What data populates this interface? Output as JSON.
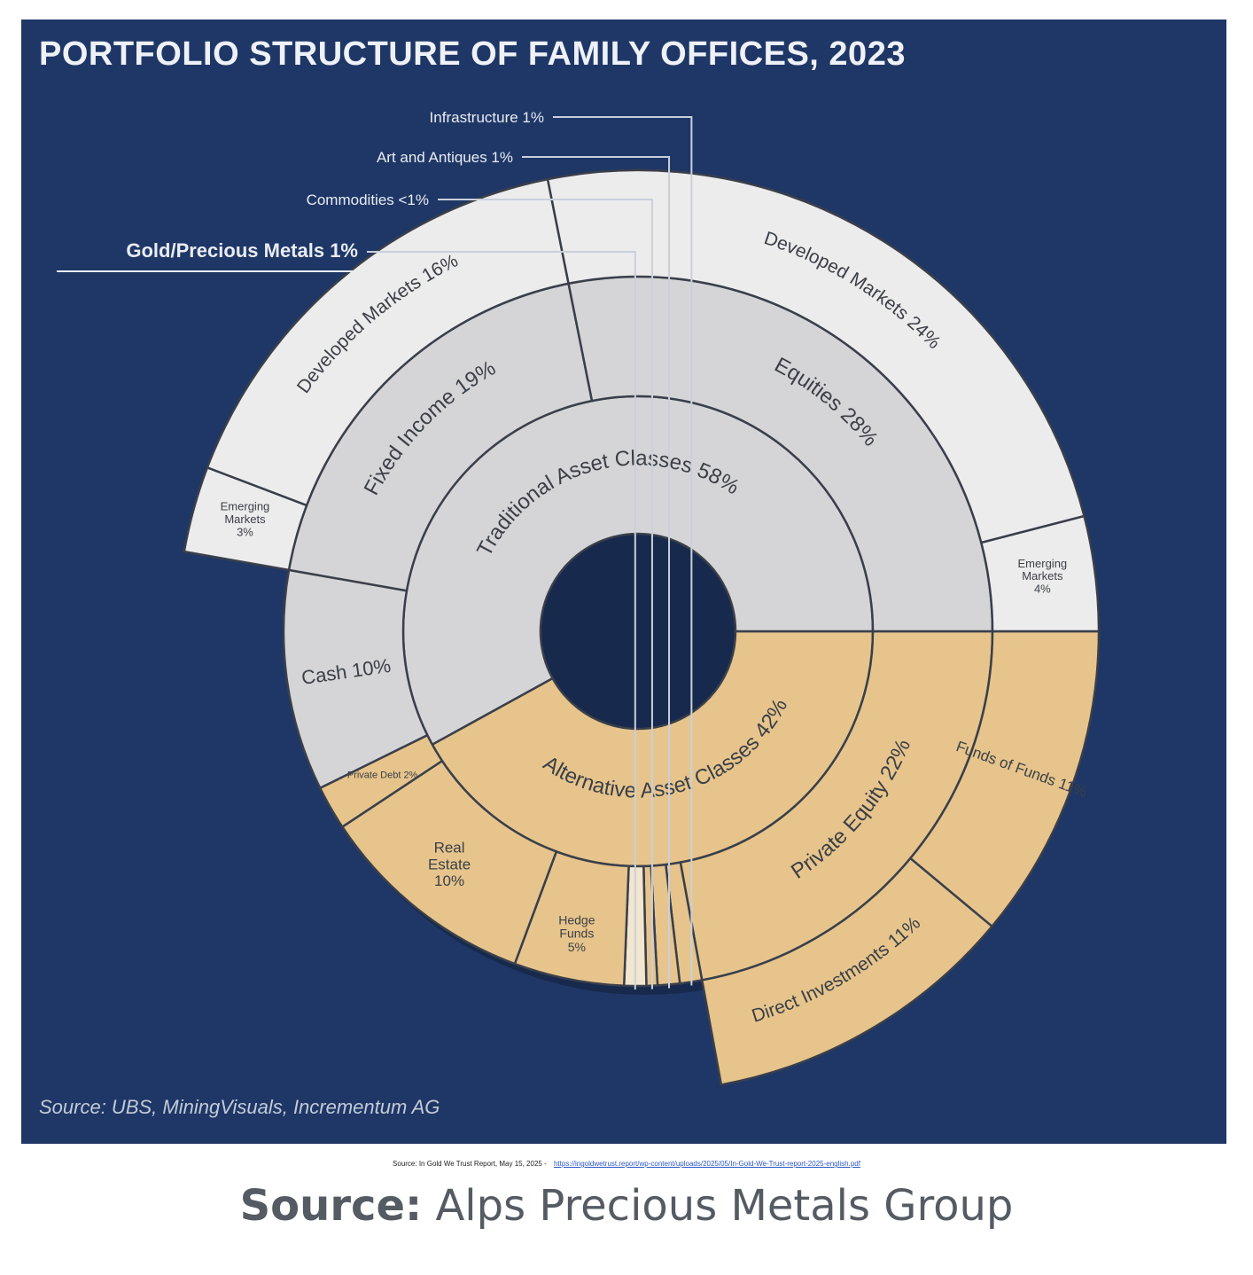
{
  "chart_data": {
    "type": "sunburst",
    "title": "PORTFOLIO STRUCTURE OF FAMILY OFFICES, 2023",
    "source": "Source: UBS, MiningVisuals, Incrementum AG",
    "colors": {
      "background": "#1f3766",
      "alternative": "#e6c48c",
      "traditional": "#d5d5d7",
      "traditional_outer": "#ececed",
      "outline": "#3a3f4a"
    },
    "inner": [
      {
        "name": "Alternative Asset Classes",
        "value": 42,
        "label": "Alternative Asset Classes 42%"
      },
      {
        "name": "Traditional Asset Classes",
        "value": 58,
        "label": "Traditional Asset Classes 58%"
      }
    ],
    "middle": [
      {
        "name": "Private Equity",
        "value": 22,
        "parent": "Alternative Asset Classes",
        "label": "Private Equity 22%"
      },
      {
        "name": "Infrastructure",
        "value": 1,
        "parent": "Alternative Asset Classes",
        "label": ""
      },
      {
        "name": "Art and Antiques",
        "value": 1,
        "parent": "Alternative Asset Classes",
        "label": ""
      },
      {
        "name": "Commodities",
        "value": 0.5,
        "parent": "Alternative Asset Classes",
        "label": ""
      },
      {
        "name": "Gold/Precious Metals",
        "value": 1,
        "parent": "Alternative Asset Classes",
        "label": ""
      },
      {
        "name": "Hedge Funds",
        "value": 5,
        "parent": "Alternative Asset Classes",
        "label": "Hedge Funds 5%"
      },
      {
        "name": "Real Estate",
        "value": 10,
        "parent": "Alternative Asset Classes",
        "label": "Real Estate 10%"
      },
      {
        "name": "Private Debt",
        "value": 2,
        "parent": "Alternative Asset Classes",
        "label": "Private Debt 2%"
      },
      {
        "name": "Cash",
        "value": 10,
        "parent": "Traditional Asset Classes",
        "label": "Cash 10%"
      },
      {
        "name": "Fixed Income",
        "value": 19,
        "parent": "Traditional Asset Classes",
        "label": "Fixed Income 19%"
      },
      {
        "name": "Equities",
        "value": 28,
        "parent": "Traditional Asset Classes",
        "label": "Equities 28%"
      }
    ],
    "outer": [
      {
        "name": "Funds of Funds",
        "value": 11,
        "parent": "Private Equity",
        "label": "Funds of Funds 11%"
      },
      {
        "name": "Direct Investments",
        "value": 11,
        "parent": "Private Equity",
        "label": "Direct Investments 11%"
      },
      {
        "name": "Emerging Markets",
        "value": 3,
        "parent": "Fixed Income",
        "label": "Emerging Markets 3%"
      },
      {
        "name": "Developed Markets",
        "value": 16,
        "parent": "Fixed Income",
        "label": "Developed Markets 16%"
      },
      {
        "name": "Developed Markets",
        "value": 24,
        "parent": "Equities",
        "label": "Developed Markets 24%"
      },
      {
        "name": "Emerging Markets",
        "value": 4,
        "parent": "Equities",
        "label": "Emerging Markets 4%"
      }
    ],
    "callouts": [
      {
        "label": "Infrastructure 1%",
        "highlight": false
      },
      {
        "label": "Art and Antiques 1%",
        "highlight": false
      },
      {
        "label": "Commodities <1%",
        "highlight": false
      },
      {
        "label": "Gold/Precious Metals 1%",
        "highlight": true
      }
    ]
  },
  "report_note": {
    "text": "Source: In Gold We Trust Report, May 15, 2025 -",
    "link": "https://ingoldwetrust.report/wp-content/uploads/2025/05/In-Gold-We-Trust-report-2025-english.pdf"
  },
  "caption": {
    "bold": "Source:",
    "text": " Alps Precious Metals Group"
  }
}
